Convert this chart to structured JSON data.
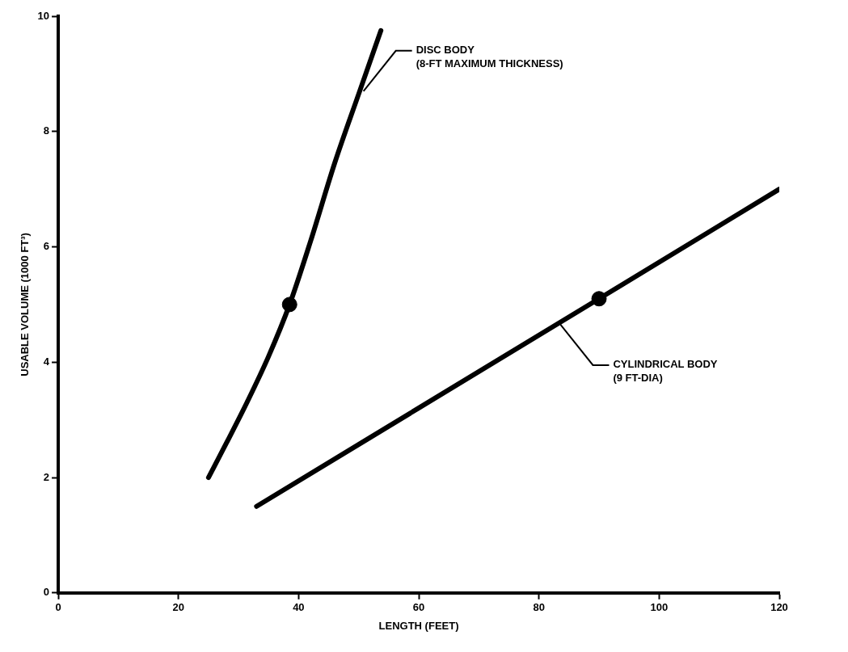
{
  "chart_data": {
    "type": "line",
    "xlabel": "LENGTH (FEET)",
    "ylabel": "USABLE VOLUME (1000 FT³)",
    "xlim": [
      0,
      120
    ],
    "xticks": [
      0,
      20,
      40,
      60,
      80,
      100,
      120
    ],
    "ylim": [
      0,
      10
    ],
    "yticks": [
      0,
      2,
      4,
      6,
      8,
      10
    ],
    "grid": false,
    "legend": false,
    "line_style": "solid",
    "series": [
      {
        "color": "#000000",
        "x": [
          25,
          28,
          31.4,
          35,
          38.5,
          42,
          46,
          50,
          53.7
        ],
        "values": [
          2.0,
          2.6,
          3.3,
          4.1,
          5.0,
          6.1,
          7.45,
          8.65,
          9.75
        ]
      },
      {
        "color": "#000000",
        "x": [
          33,
          90,
          120
        ],
        "values": [
          1.5,
          5.1,
          7.0
        ]
      },
      {
        "type": "scatter",
        "color": "#000000",
        "x": [
          38.5,
          90
        ],
        "values": [
          5.0,
          5.1
        ]
      }
    ],
    "annotations": [
      {
        "text": "DISC BODY\n(8-FT MAXIMUM THICKNESS)",
        "x": 50.8,
        "y": 8.7
      },
      {
        "text": "CYLINDRICAL BODY\n(9 FT-DIA)",
        "x": 83.6,
        "y": 4.65
      }
    ]
  }
}
